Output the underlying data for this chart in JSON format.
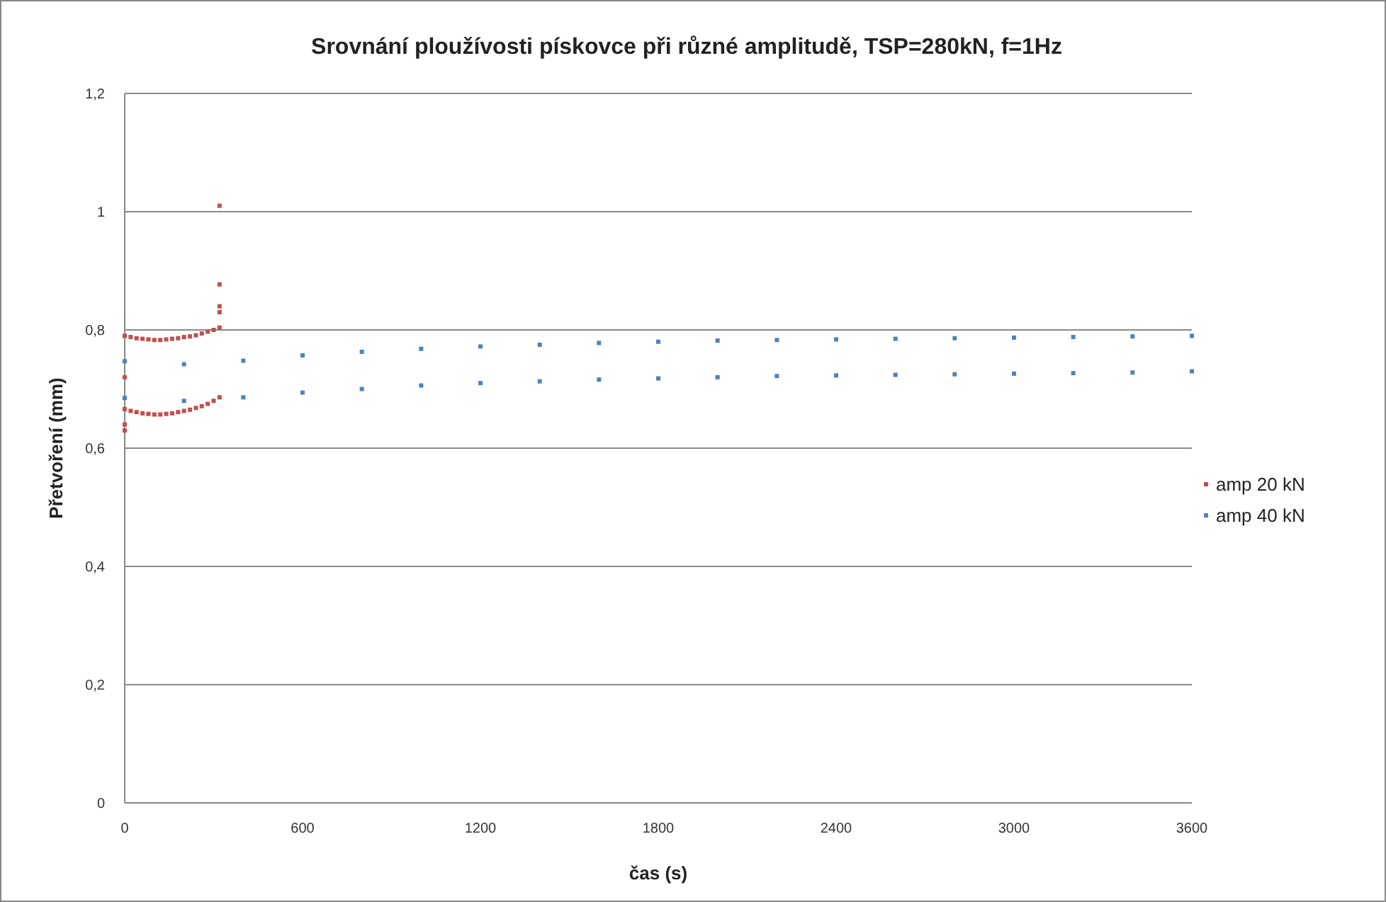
{
  "chart_data": {
    "type": "scatter",
    "title": "Srovnání ploužívosti pískovce při různé amplitudě, TSP=280kN, f=1Hz",
    "xlabel": "čas (s)",
    "ylabel": "Přetvoření (mm)",
    "xlim": [
      0,
      3600
    ],
    "xticks": [
      0,
      600,
      1200,
      1800,
      2400,
      3000,
      3600
    ],
    "ylim": [
      0,
      1.2
    ],
    "yticks": [
      0,
      {
        "value": 0.2,
        "label": "0,2"
      },
      {
        "value": 0.4,
        "label": "0,4"
      },
      {
        "value": 0.6,
        "label": "0,6"
      },
      {
        "value": 0.8,
        "label": "0,8"
      },
      1,
      {
        "value": 1.2,
        "label": "1,2"
      }
    ],
    "grid": "y",
    "legend": "right",
    "marker": "square",
    "series": [
      {
        "name": "amp 20 kN",
        "color": "#c0504d",
        "x": [
          0,
          20,
          40,
          60,
          80,
          100,
          120,
          140,
          160,
          180,
          200,
          220,
          240,
          260,
          280,
          300,
          320,
          0,
          20,
          40,
          60,
          80,
          100,
          120,
          140,
          160,
          180,
          200,
          220,
          240,
          260,
          280,
          300,
          320,
          320,
          320,
          320,
          320,
          0,
          0,
          0
        ],
        "values": [
          0.79,
          0.788,
          0.786,
          0.785,
          0.784,
          0.783,
          0.783,
          0.784,
          0.785,
          0.786,
          0.788,
          0.789,
          0.791,
          0.794,
          0.797,
          0.8,
          0.804,
          0.666,
          0.663,
          0.661,
          0.659,
          0.658,
          0.657,
          0.657,
          0.658,
          0.659,
          0.661,
          0.663,
          0.665,
          0.668,
          0.671,
          0.675,
          0.68,
          0.686,
          0.83,
          0.84,
          0.877,
          1.01,
          0.64,
          0.63,
          0.72
        ]
      },
      {
        "name": "amp 40 kN",
        "color": "#4f81bd",
        "x": [
          0,
          200,
          400,
          600,
          800,
          1000,
          1200,
          1400,
          1600,
          1800,
          2000,
          2200,
          2400,
          2600,
          2800,
          3000,
          3200,
          3400,
          3600,
          0,
          200,
          400,
          600,
          800,
          1000,
          1200,
          1400,
          1600,
          1800,
          2000,
          2200,
          2400,
          2600,
          2800,
          3000,
          3200,
          3400,
          3600
        ],
        "values": [
          0.747,
          0.742,
          0.748,
          0.757,
          0.763,
          0.768,
          0.772,
          0.775,
          0.778,
          0.78,
          0.782,
          0.783,
          0.784,
          0.785,
          0.786,
          0.787,
          0.788,
          0.789,
          0.79,
          0.685,
          0.68,
          0.686,
          0.694,
          0.7,
          0.706,
          0.71,
          0.713,
          0.716,
          0.718,
          0.72,
          0.722,
          0.723,
          0.724,
          0.725,
          0.726,
          0.727,
          0.728,
          0.73
        ]
      }
    ]
  }
}
